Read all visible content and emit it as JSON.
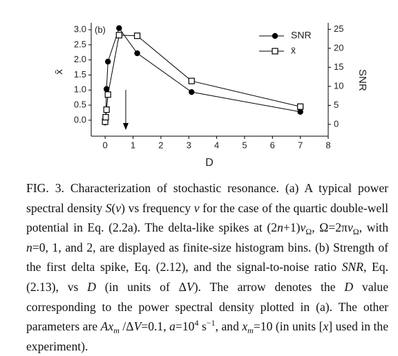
{
  "chart_data": {
    "type": "line",
    "annotation": "(b)",
    "x_label": "D",
    "y_label": "x̄",
    "y2_label": "SNR",
    "x": [
      0,
      0.02,
      0.05,
      0.1,
      0.5,
      1.15,
      3.1,
      7
    ],
    "series": [
      {
        "name": "SNR",
        "color": "#000000",
        "marker": "filled-circle",
        "axis": "y2",
        "values": [
          0.5,
          1.5,
          9.3,
          16.5,
          25.3,
          18.7,
          8.5,
          3.3
        ]
      },
      {
        "name": "x̄",
        "color": "#000000",
        "marker": "open-square",
        "values": [
          -0.05,
          0.1,
          0.35,
          0.85,
          2.82,
          2.8,
          1.3,
          0.45
        ]
      }
    ],
    "xlim": [
      -0.5,
      8
    ],
    "xticks": [
      0,
      1,
      2,
      3,
      4,
      5,
      6,
      7,
      8
    ],
    "ylim": [
      -0.53,
      3.23
    ],
    "yticks": [
      {
        "value": 0,
        "label": "0.0"
      },
      0.5,
      {
        "value": 1,
        "label": "1.0"
      },
      1.5,
      {
        "value": 2,
        "label": "2.0"
      },
      2.5,
      {
        "value": 3,
        "label": "3.0"
      }
    ],
    "y2lim": [
      -3.1,
      26.7
    ],
    "y2ticks": [
      0,
      5,
      10,
      15,
      20,
      25
    ],
    "legend": "upper right",
    "grid": false
  },
  "caption": [
    {
      "text": "FIG. 3. Characterization of stochastic resonance. (a) A typical power spectral density "
    },
    {
      "text": "S",
      "style": "i"
    },
    {
      "text": "("
    },
    {
      "text": "ν",
      "style": "i"
    },
    {
      "text": ") vs frequency "
    },
    {
      "text": "ν",
      "style": "i"
    },
    {
      "text": " for the case of the quartic double-well potential in Eq. (2.2a). The delta-like spikes at (2"
    },
    {
      "text": "n",
      "style": "i"
    },
    {
      "text": "+1)"
    },
    {
      "text": "ν",
      "style": "i"
    },
    {
      "text": "Ω",
      "style": "sub"
    },
    {
      "text": ", Ω=2π"
    },
    {
      "text": "ν",
      "style": "i"
    },
    {
      "text": "Ω",
      "style": "sub"
    },
    {
      "text": ", with "
    },
    {
      "text": "n",
      "style": "i"
    },
    {
      "text": "=0, 1, and 2, are displayed as finite-size histogram bins. (b) Strength of the first delta spike, Eq. (2.12), and the signal-to-noise ratio "
    },
    {
      "text": "SNR",
      "style": "i"
    },
    {
      "text": ", Eq. (2.13), vs "
    },
    {
      "text": "D",
      "style": "i"
    },
    {
      "text": " (in units of Δ"
    },
    {
      "text": "V",
      "style": "i"
    },
    {
      "text": "). The arrow denotes the "
    },
    {
      "text": "D",
      "style": "i"
    },
    {
      "text": " value corresponding to the power spectral density plotted in (a). The other parameters are "
    },
    {
      "text": "Ax",
      "style": "i"
    },
    {
      "text": "m",
      "style": "isub"
    },
    {
      "text": " /Δ"
    },
    {
      "text": "V",
      "style": "i"
    },
    {
      "text": "=0.1, "
    },
    {
      "text": "a",
      "style": "i"
    },
    {
      "text": "=10"
    },
    {
      "text": "4",
      "style": "sup"
    },
    {
      "text": " s"
    },
    {
      "text": "−1",
      "style": "sup"
    },
    {
      "text": ", and "
    },
    {
      "text": "x",
      "style": "i"
    },
    {
      "text": "m",
      "style": "isub"
    },
    {
      "text": "=10 (in units ["
    },
    {
      "text": "x",
      "style": "i"
    },
    {
      "text": "] used in the experiment)."
    }
  ]
}
